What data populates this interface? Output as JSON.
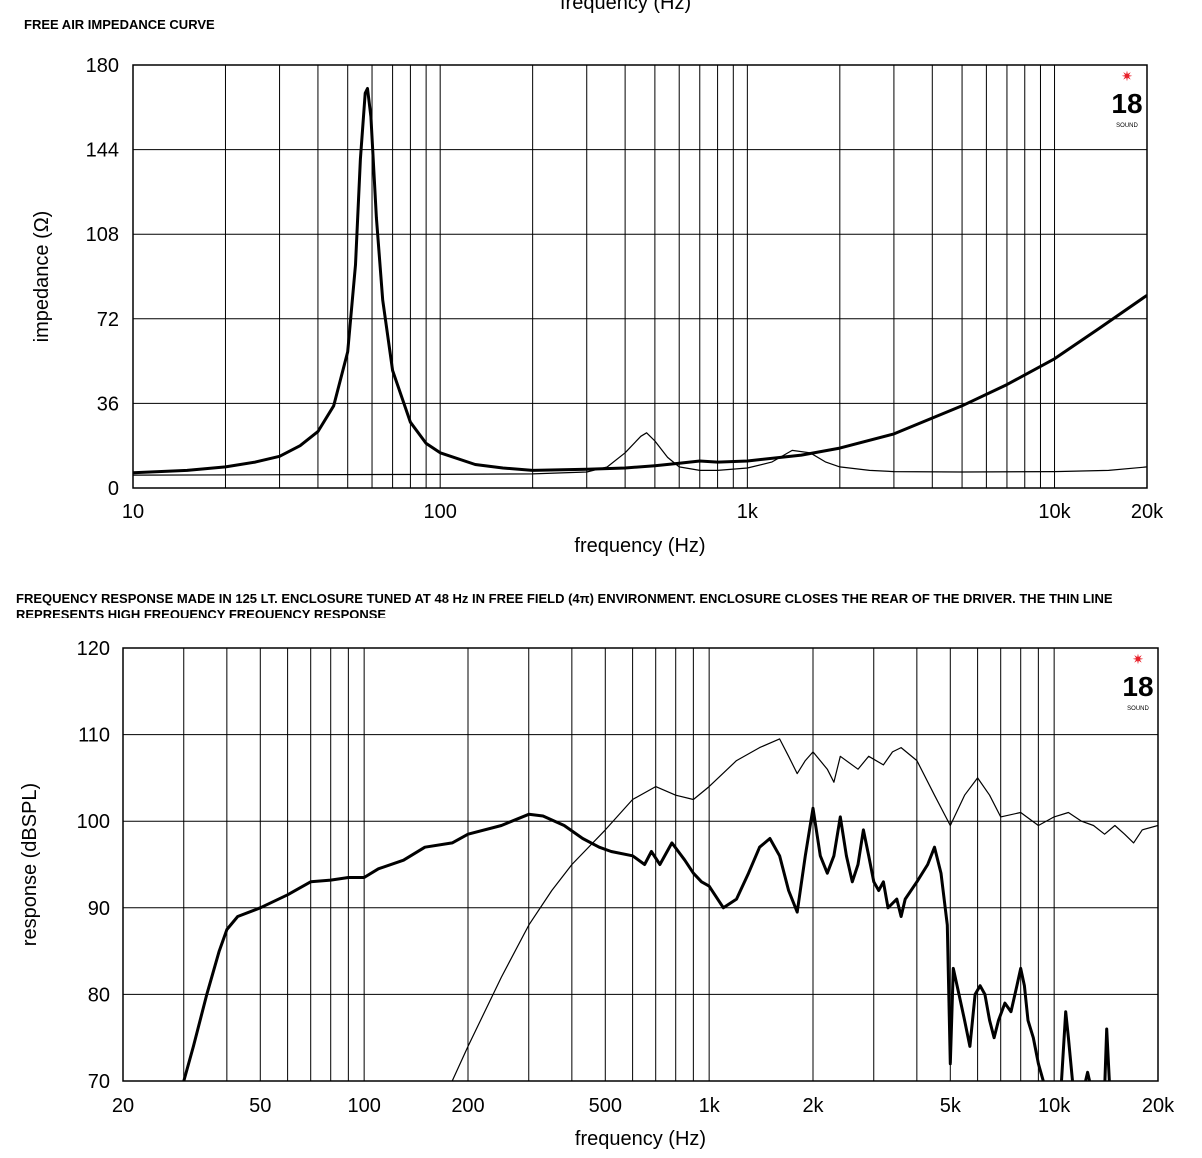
{
  "page": {
    "top_cut_label": "frequency (Hz)",
    "chart1_title": "FREE AIR IMPEDANCE CURVE",
    "chart2_title": "FREQUENCY RESPONSE MADE IN 125 LT. ENCLOSURE TUNED AT 48 Hz IN FREE FIELD (4π) ENVIRONMENT. ENCLOSURE CLOSES THE REAR OF THE DRIVER. THE THIN LINE REPRESENTS HIGH FREQUENCY FREQUENCY RESPONSE",
    "logo_text": "18",
    "logo_subtext": "SOUND",
    "logo_color": "#e8202a"
  },
  "chart_data": [
    {
      "type": "line",
      "title": "FREE AIR IMPEDANCE CURVE",
      "xlabel": "frequency (Hz)",
      "ylabel": "impedance (Ω)",
      "xscale": "log",
      "xlim": [
        10,
        20000
      ],
      "ylim": [
        0,
        180
      ],
      "grid": true,
      "xticks": [
        {
          "value": 10,
          "label": "10"
        },
        {
          "value": 100,
          "label": "100"
        },
        {
          "value": 1000,
          "label": "1k"
        },
        {
          "value": 10000,
          "label": "10k"
        },
        {
          "value": 20000,
          "label": "20k"
        }
      ],
      "yticks": [
        0,
        36,
        72,
        108,
        144,
        180
      ],
      "series": [
        {
          "style": "thick",
          "points": [
            [
              10,
              6.5
            ],
            [
              15,
              7.5
            ],
            [
              20,
              9
            ],
            [
              25,
              11
            ],
            [
              30,
              13.5
            ],
            [
              35,
              18
            ],
            [
              40,
              24
            ],
            [
              45,
              35
            ],
            [
              50,
              58
            ],
            [
              53,
              95
            ],
            [
              55,
              140
            ],
            [
              57,
              168
            ],
            [
              58,
              170
            ],
            [
              59.5,
              158
            ],
            [
              62,
              115
            ],
            [
              65,
              80
            ],
            [
              70,
              50
            ],
            [
              80,
              28
            ],
            [
              90,
              19
            ],
            [
              100,
              15
            ],
            [
              130,
              10
            ],
            [
              160,
              8.5
            ],
            [
              200,
              7.5
            ],
            [
              300,
              8
            ],
            [
              400,
              8.5
            ],
            [
              500,
              9.5
            ],
            [
              600,
              10.5
            ],
            [
              700,
              11.5
            ],
            [
              800,
              11
            ],
            [
              1000,
              11.5
            ],
            [
              1500,
              14
            ],
            [
              2000,
              17
            ],
            [
              3000,
              23
            ],
            [
              5000,
              35
            ],
            [
              7000,
              44
            ],
            [
              10000,
              55
            ],
            [
              14000,
              68
            ],
            [
              20000,
              82
            ]
          ]
        },
        {
          "style": "thin",
          "points": [
            [
              10,
              5.5
            ],
            [
              100,
              5.8
            ],
            [
              200,
              6
            ],
            [
              300,
              6.8
            ],
            [
              350,
              9
            ],
            [
              400,
              15
            ],
            [
              450,
              22
            ],
            [
              470,
              23.5
            ],
            [
              500,
              20
            ],
            [
              550,
              13
            ],
            [
              600,
              9
            ],
            [
              700,
              7.5
            ],
            [
              800,
              7.5
            ],
            [
              1000,
              8.5
            ],
            [
              1200,
              11
            ],
            [
              1400,
              16
            ],
            [
              1600,
              15
            ],
            [
              1800,
              11
            ],
            [
              2000,
              9
            ],
            [
              2500,
              7.5
            ],
            [
              3000,
              7
            ],
            [
              5000,
              6.8
            ],
            [
              10000,
              7
            ],
            [
              15000,
              7.5
            ],
            [
              20000,
              9
            ]
          ]
        }
      ]
    },
    {
      "type": "line",
      "xlabel": "frequency (Hz)",
      "ylabel": "response (dBSPL)",
      "xscale": "log",
      "xlim": [
        20,
        20000
      ],
      "ylim": [
        70,
        120
      ],
      "grid": true,
      "xticks": [
        {
          "value": 20,
          "label": "20"
        },
        {
          "value": 50,
          "label": "50"
        },
        {
          "value": 100,
          "label": "100"
        },
        {
          "value": 200,
          "label": "200"
        },
        {
          "value": 500,
          "label": "500"
        },
        {
          "value": 1000,
          "label": "1k"
        },
        {
          "value": 2000,
          "label": "2k"
        },
        {
          "value": 5000,
          "label": "5k"
        },
        {
          "value": 10000,
          "label": "10k"
        },
        {
          "value": 20000,
          "label": "20k"
        }
      ],
      "yticks": [
        70,
        80,
        90,
        100,
        110,
        120
      ],
      "series": [
        {
          "style": "thick",
          "points": [
            [
              30,
              70
            ],
            [
              32,
              74
            ],
            [
              35,
              80
            ],
            [
              38,
              85
            ],
            [
              40,
              87.5
            ],
            [
              43,
              89
            ],
            [
              50,
              90
            ],
            [
              60,
              91.5
            ],
            [
              70,
              93
            ],
            [
              80,
              93.2
            ],
            [
              90,
              93.5
            ],
            [
              100,
              93.5
            ],
            [
              110,
              94.5
            ],
            [
              130,
              95.5
            ],
            [
              150,
              97
            ],
            [
              180,
              97.5
            ],
            [
              200,
              98.5
            ],
            [
              250,
              99.5
            ],
            [
              300,
              100.8
            ],
            [
              330,
              100.6
            ],
            [
              380,
              99.5
            ],
            [
              430,
              98
            ],
            [
              480,
              97
            ],
            [
              520,
              96.5
            ],
            [
              600,
              96
            ],
            [
              650,
              95
            ],
            [
              680,
              96.5
            ],
            [
              720,
              95
            ],
            [
              780,
              97.5
            ],
            [
              850,
              95.5
            ],
            [
              900,
              94
            ],
            [
              950,
              93
            ],
            [
              1000,
              92.5
            ],
            [
              1100,
              90
            ],
            [
              1200,
              91
            ],
            [
              1300,
              94
            ],
            [
              1400,
              97
            ],
            [
              1500,
              98
            ],
            [
              1600,
              96
            ],
            [
              1700,
              92
            ],
            [
              1800,
              89.5
            ],
            [
              1900,
              96
            ],
            [
              2000,
              101.5
            ],
            [
              2100,
              96
            ],
            [
              2200,
              94
            ],
            [
              2300,
              96
            ],
            [
              2400,
              100.5
            ],
            [
              2500,
              96
            ],
            [
              2600,
              93
            ],
            [
              2700,
              95
            ],
            [
              2800,
              99
            ],
            [
              2900,
              96
            ],
            [
              3000,
              93
            ],
            [
              3100,
              92
            ],
            [
              3200,
              93
            ],
            [
              3300,
              90
            ],
            [
              3500,
              91
            ],
            [
              3600,
              89
            ],
            [
              3700,
              91
            ],
            [
              4000,
              93
            ],
            [
              4300,
              95
            ],
            [
              4500,
              97
            ],
            [
              4700,
              94
            ],
            [
              4900,
              88
            ],
            [
              5000,
              72
            ],
            [
              5100,
              83
            ],
            [
              5300,
              80
            ],
            [
              5500,
              77
            ],
            [
              5700,
              74
            ],
            [
              5900,
              80
            ],
            [
              6100,
              81
            ],
            [
              6300,
              80
            ],
            [
              6500,
              77
            ],
            [
              6700,
              75
            ],
            [
              6900,
              77
            ],
            [
              7200,
              79
            ],
            [
              7500,
              78
            ],
            [
              7800,
              81
            ],
            [
              8000,
              83
            ],
            [
              8200,
              81
            ],
            [
              8400,
              77
            ],
            [
              8700,
              75
            ],
            [
              9000,
              72
            ],
            [
              9300,
              70
            ],
            [
              10000,
              68
            ],
            [
              10500,
              70
            ],
            [
              10800,
              78
            ],
            [
              11000,
              75
            ],
            [
              11300,
              70
            ],
            [
              12000,
              68
            ],
            [
              12500,
              71
            ],
            [
              13000,
              68
            ],
            [
              14000,
              69
            ],
            [
              14200,
              76
            ],
            [
              14500,
              69
            ]
          ]
        },
        {
          "style": "thin",
          "points": [
            [
              180,
              70
            ],
            [
              200,
              74
            ],
            [
              250,
              82
            ],
            [
              300,
              88
            ],
            [
              350,
              92
            ],
            [
              400,
              95
            ],
            [
              500,
              99
            ],
            [
              600,
              102.5
            ],
            [
              700,
              104
            ],
            [
              800,
              103
            ],
            [
              900,
              102.5
            ],
            [
              1000,
              104
            ],
            [
              1200,
              107
            ],
            [
              1400,
              108.5
            ],
            [
              1600,
              109.5
            ],
            [
              1700,
              107.5
            ],
            [
              1800,
              105.5
            ],
            [
              1900,
              107
            ],
            [
              2000,
              108
            ],
            [
              2200,
              106
            ],
            [
              2300,
              104.5
            ],
            [
              2400,
              107.5
            ],
            [
              2700,
              106
            ],
            [
              2900,
              107.5
            ],
            [
              3200,
              106.5
            ],
            [
              3400,
              108
            ],
            [
              3600,
              108.5
            ],
            [
              4000,
              107
            ],
            [
              4500,
              103
            ],
            [
              5000,
              99.5
            ],
            [
              5500,
              103
            ],
            [
              6000,
              105
            ],
            [
              6500,
              103
            ],
            [
              7000,
              100.5
            ],
            [
              8000,
              101
            ],
            [
              9000,
              99.5
            ],
            [
              10000,
              100.5
            ],
            [
              11000,
              101
            ],
            [
              12000,
              100
            ],
            [
              13000,
              99.5
            ],
            [
              14000,
              98.5
            ],
            [
              15000,
              99.5
            ],
            [
              16000,
              98.5
            ],
            [
              17000,
              97.5
            ],
            [
              18000,
              99
            ],
            [
              20000,
              99.5
            ]
          ]
        }
      ]
    }
  ]
}
